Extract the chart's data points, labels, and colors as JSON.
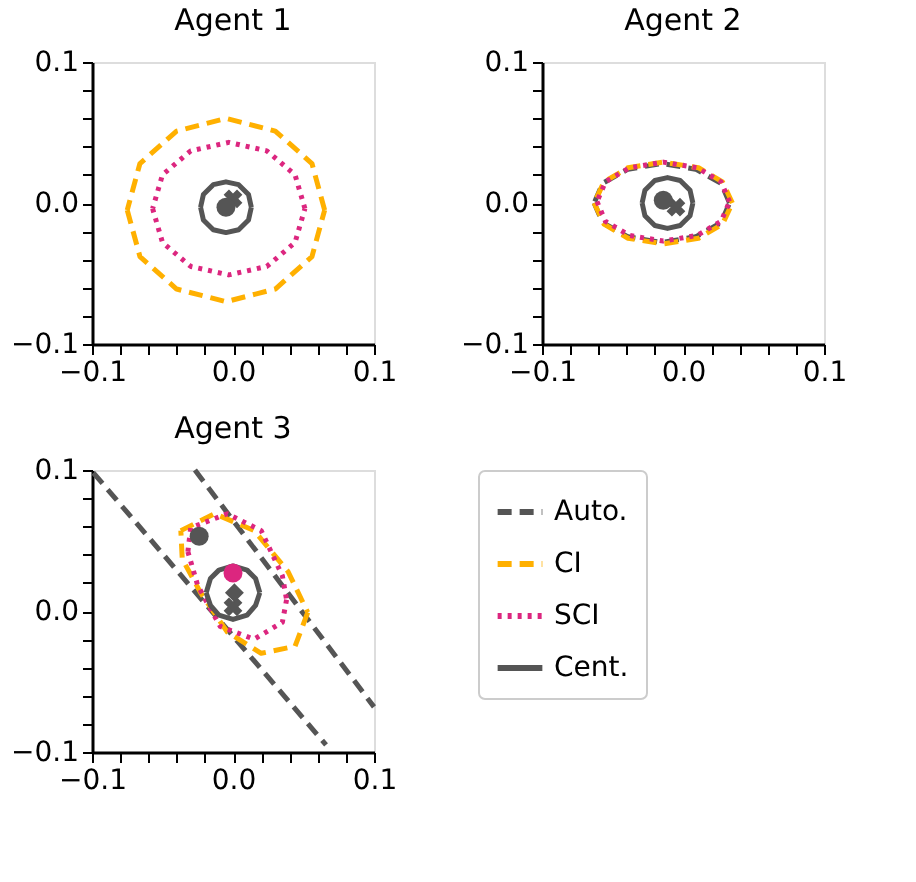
{
  "chart_data": [
    {
      "type": "line",
      "title": "Agent 1",
      "xlim": [
        -0.1,
        0.1
      ],
      "ylim": [
        -0.1,
        0.1
      ],
      "xticks": [
        {
          "value": -0.1,
          "label": "−0.1"
        },
        {
          "value": -0.08,
          "label": null
        },
        {
          "value": -0.06,
          "label": null
        },
        {
          "value": -0.04,
          "label": null
        },
        {
          "value": -0.02,
          "label": null
        },
        {
          "value": 0,
          "label": "0.0"
        },
        {
          "value": 0.02,
          "label": null
        },
        {
          "value": 0.04,
          "label": null
        },
        {
          "value": 0.06,
          "label": null
        },
        {
          "value": 0.08,
          "label": null
        },
        {
          "value": 0.1,
          "label": "0.1"
        }
      ],
      "yticks": [
        {
          "value": -0.1,
          "label": "−0.1"
        },
        {
          "value": -0.08,
          "label": null
        },
        {
          "value": -0.06,
          "label": null
        },
        {
          "value": -0.04,
          "label": null
        },
        {
          "value": -0.02,
          "label": null
        },
        {
          "value": 0,
          "label": "0.0"
        },
        {
          "value": 0.02,
          "label": null
        },
        {
          "value": 0.04,
          "label": null
        },
        {
          "value": 0.06,
          "label": null
        },
        {
          "value": 0.08,
          "label": null
        },
        {
          "value": 0.1,
          "label": "0.1"
        }
      ],
      "series": [
        {
          "type": "line",
          "color": "#ffb000",
          "line_style": "dashed",
          "x": [
            0.065,
            0.056,
            0.03,
            -0.005,
            -0.04,
            -0.066,
            -0.075,
            null,
            -0.075,
            -0.066,
            -0.04,
            -0.005,
            0.03,
            0.056,
            0.065
          ],
          "values": [
            -0.005,
            0.028,
            0.051,
            0.06,
            0.051,
            0.028,
            -0.005,
            null,
            -0.005,
            -0.038,
            -0.061,
            -0.07,
            -0.061,
            -0.038,
            -0.005
          ]
        },
        {
          "type": "line",
          "color": "#dc267f",
          "line_style": "dotted",
          "x": [
            0.051,
            0.044,
            0.024,
            -0.003,
            -0.03,
            -0.05,
            -0.057,
            null,
            -0.057,
            -0.05,
            -0.03,
            -0.003,
            0.024,
            0.044,
            0.051
          ],
          "values": [
            -0.004,
            0.02,
            0.037,
            0.043,
            0.037,
            0.02,
            -0.004,
            null,
            -0.004,
            -0.028,
            -0.045,
            -0.051,
            -0.045,
            -0.028,
            -0.004
          ]
        },
        {
          "type": "line",
          "color": "#555555",
          "line_style": "solid",
          "x": [
            0.013,
            0.011,
            0.004,
            -0.005,
            -0.014,
            -0.021,
            -0.023,
            null,
            -0.023,
            -0.021,
            -0.014,
            -0.005,
            0.004,
            0.011,
            0.013
          ],
          "values": [
            -0.003,
            0.006,
            0.013,
            0.015,
            0.013,
            0.006,
            -0.003,
            null,
            -0.003,
            -0.012,
            -0.019,
            -0.021,
            -0.019,
            -0.012,
            -0.003
          ]
        },
        {
          "type": "scatter",
          "marker": "circle",
          "color": "#555555",
          "x": [
            -0.005
          ],
          "values": [
            -0.003
          ]
        },
        {
          "type": "scatter",
          "marker": "cross",
          "color": "#555555",
          "x": [
            0.0
          ],
          "values": [
            0.003
          ]
        }
      ]
    },
    {
      "type": "line",
      "title": "Agent 2",
      "xlim": [
        -0.1,
        0.1
      ],
      "ylim": [
        -0.1,
        0.1
      ],
      "xticks": [
        {
          "value": -0.1,
          "label": "−0.1"
        },
        {
          "value": -0.08,
          "label": null
        },
        {
          "value": -0.06,
          "label": null
        },
        {
          "value": -0.04,
          "label": null
        },
        {
          "value": -0.02,
          "label": null
        },
        {
          "value": 0,
          "label": "0.0"
        },
        {
          "value": 0.02,
          "label": null
        },
        {
          "value": 0.04,
          "label": null
        },
        {
          "value": 0.06,
          "label": null
        },
        {
          "value": 0.08,
          "label": null
        },
        {
          "value": 0.1,
          "label": "0.1"
        }
      ],
      "yticks": [
        {
          "value": -0.1,
          "label": "−0.1"
        },
        {
          "value": -0.08,
          "label": null
        },
        {
          "value": -0.06,
          "label": null
        },
        {
          "value": -0.04,
          "label": null
        },
        {
          "value": -0.02,
          "label": null
        },
        {
          "value": 0,
          "label": "0.0"
        },
        {
          "value": 0.02,
          "label": null
        },
        {
          "value": 0.04,
          "label": null
        },
        {
          "value": 0.06,
          "label": null
        },
        {
          "value": 0.08,
          "label": null
        },
        {
          "value": 0.1,
          "label": "0.1"
        }
      ],
      "series": [
        {
          "type": "line",
          "color": "#555555",
          "line_style": "dashed",
          "x": [
            0.033,
            0.027,
            0.009,
            -0.015,
            -0.039,
            -0.057,
            -0.063,
            null,
            -0.063,
            -0.057,
            -0.039,
            -0.015,
            0.009,
            0.027,
            0.033
          ],
          "values": [
            0,
            0.014,
            0.024,
            0.028,
            0.024,
            0.014,
            0,
            null,
            0,
            -0.014,
            -0.024,
            -0.028,
            -0.024,
            -0.014,
            0
          ]
        },
        {
          "type": "line",
          "color": "#ffb000",
          "line_style": "dashed",
          "x": [
            0.035,
            0.028,
            0.011,
            -0.014,
            -0.039,
            -0.056,
            -0.063,
            null,
            -0.063,
            -0.056,
            -0.039,
            -0.014,
            0.011,
            0.028,
            0.035
          ],
          "values": [
            0,
            0.015,
            0.025,
            0.029,
            0.025,
            0.015,
            0,
            null,
            0,
            -0.015,
            -0.025,
            -0.029,
            -0.025,
            -0.015,
            0
          ]
        },
        {
          "type": "line",
          "color": "#dc267f",
          "line_style": "dotted",
          "x": [
            0.033,
            0.027,
            0.01,
            -0.014,
            -0.038,
            -0.055,
            -0.061,
            null,
            -0.061,
            -0.055,
            -0.038,
            -0.014,
            0.01,
            0.027,
            0.033
          ],
          "values": [
            0.001,
            0.015,
            0.025,
            0.029,
            0.025,
            0.015,
            0.001,
            null,
            0.001,
            -0.013,
            -0.023,
            -0.027,
            -0.023,
            -0.013,
            0.001
          ]
        },
        {
          "type": "line",
          "color": "#555555",
          "line_style": "solid",
          "x": [
            0.007,
            0.005,
            -0.002,
            -0.011,
            -0.02,
            -0.027,
            -0.029,
            null,
            -0.029,
            -0.027,
            -0.02,
            -0.011,
            -0.002,
            0.005,
            0.007
          ],
          "values": [
            0,
            0.009,
            0.016,
            0.018,
            0.016,
            0.009,
            0,
            null,
            0,
            -0.009,
            -0.016,
            -0.018,
            -0.016,
            -0.009,
            0
          ]
        },
        {
          "type": "scatter",
          "marker": "circle",
          "color": "#555555",
          "x": [
            -0.014
          ],
          "values": [
            0.002
          ]
        },
        {
          "type": "scatter",
          "marker": "cross",
          "color": "#555555",
          "x": [
            -0.005
          ],
          "values": [
            -0.003
          ]
        }
      ]
    },
    {
      "type": "line",
      "title": "Agent 3",
      "xlim": [
        -0.1,
        0.1
      ],
      "ylim": [
        -0.1,
        0.1
      ],
      "legend": "right",
      "xticks": [
        {
          "value": -0.1,
          "label": "−0.1"
        },
        {
          "value": -0.08,
          "label": null
        },
        {
          "value": -0.06,
          "label": null
        },
        {
          "value": -0.04,
          "label": null
        },
        {
          "value": -0.02,
          "label": null
        },
        {
          "value": 0,
          "label": "0.0"
        },
        {
          "value": 0.02,
          "label": null
        },
        {
          "value": 0.04,
          "label": null
        },
        {
          "value": 0.06,
          "label": null
        },
        {
          "value": 0.08,
          "label": null
        },
        {
          "value": 0.1,
          "label": "0.1"
        }
      ],
      "yticks": [
        {
          "value": -0.1,
          "label": "−0.1"
        },
        {
          "value": -0.08,
          "label": null
        },
        {
          "value": -0.06,
          "label": null
        },
        {
          "value": -0.04,
          "label": null
        },
        {
          "value": -0.02,
          "label": null
        },
        {
          "value": 0,
          "label": "0.0"
        },
        {
          "value": 0.02,
          "label": null
        },
        {
          "value": 0.04,
          "label": null
        },
        {
          "value": 0.06,
          "label": null
        },
        {
          "value": 0.08,
          "label": null
        },
        {
          "value": 0.1,
          "label": "0.1"
        }
      ],
      "series": [
        {
          "type": "line",
          "name": "Auto.",
          "color": "#555555",
          "line_style": "dashed",
          "x": [
            -0.099,
            0.066,
            null,
            -0.027,
            0.1
          ],
          "values": [
            0.098,
            -0.095,
            null,
            0.1,
            -0.068
          ]
        },
        {
          "type": "line",
          "name": "CI",
          "color": "#ffb000",
          "line_style": "dashed",
          "x": [
            -0.037,
            -0.013,
            0.015,
            0.039,
            0.053,
            null,
            0.053,
            0.044,
            0.02,
            -0.004,
            -0.023,
            -0.036,
            -0.037
          ],
          "values": [
            0.057,
            0.069,
            0.057,
            0.028,
            -0.001,
            null,
            -0.001,
            -0.025,
            -0.03,
            -0.015,
            0.013,
            0.037,
            0.057
          ]
        },
        {
          "type": "line",
          "name": "SCI",
          "color": "#dc267f",
          "line_style": "dotted",
          "x": [
            -0.032,
            -0.03,
            -0.004,
            0.02,
            0.035,
            0.038,
            null,
            0.038,
            0.035,
            0.015,
            -0.009,
            -0.025,
            -0.032
          ],
          "values": [
            0.042,
            0.059,
            0.069,
            0.057,
            0.025,
            0.008,
            null,
            0.008,
            -0.008,
            -0.02,
            -0.011,
            0.018,
            0.042
          ]
        },
        {
          "type": "line",
          "name": "Cent.",
          "color": "#555555",
          "line_style": "solid",
          "x": [
            0.019,
            0.016,
            0.01,
            0,
            -0.01,
            -0.016,
            -0.019,
            null,
            -0.019,
            -0.016,
            -0.01,
            0,
            0.01,
            0.016,
            0.019
          ],
          "values": [
            0.013,
            0.023,
            0.029,
            0.032,
            0.029,
            0.023,
            0.013,
            null,
            0.013,
            0.004,
            -0.003,
            -0.006,
            -0.003,
            0.004,
            0.013
          ]
        },
        {
          "type": "scatter",
          "marker": "circle",
          "color": "#555555",
          "x": [
            -0.024
          ],
          "values": [
            0.053
          ]
        },
        {
          "type": "scatter",
          "marker": "circle",
          "color": "#dc267f",
          "x": [
            0.0
          ],
          "values": [
            0.027
          ]
        },
        {
          "type": "scatter",
          "marker": "diamond",
          "color": "#555555",
          "x": [
            0.001
          ],
          "values": [
            0.013
          ]
        },
        {
          "type": "scatter",
          "marker": "cross",
          "color": "#555555",
          "x": [
            0.0
          ],
          "values": [
            0.003
          ]
        }
      ]
    }
  ]
}
